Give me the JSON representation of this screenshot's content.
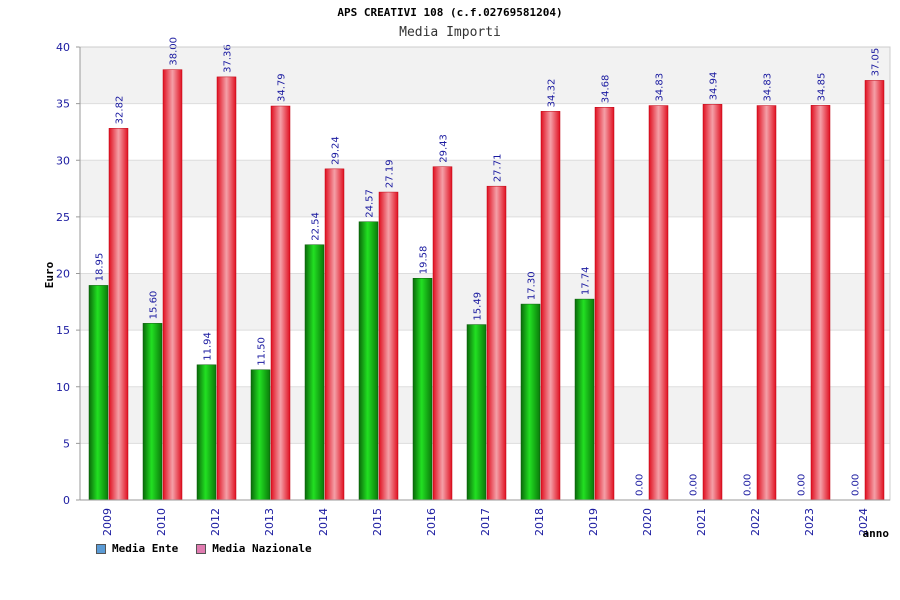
{
  "title": "APS CREATIVI 108 (c.f.02769581204)",
  "subtitle": "Media Importi",
  "chart_data": {
    "type": "bar",
    "categories": [
      "2009",
      "2010",
      "2012",
      "2013",
      "2014",
      "2015",
      "2016",
      "2017",
      "2018",
      "2019",
      "2020",
      "2021",
      "2022",
      "2023",
      "2024"
    ],
    "series": [
      {
        "name": "Media Ente",
        "color": "#00a000",
        "values": [
          18.95,
          15.6,
          11.94,
          11.5,
          22.54,
          24.57,
          19.58,
          15.49,
          17.3,
          17.74,
          0.0,
          0.0,
          0.0,
          0.0,
          0.0
        ]
      },
      {
        "name": "Media Nazionale",
        "color": "#e8202a",
        "values": [
          32.82,
          38.0,
          37.36,
          34.79,
          29.24,
          27.19,
          29.43,
          27.71,
          34.32,
          34.68,
          34.83,
          34.94,
          34.83,
          34.85,
          37.05
        ]
      }
    ],
    "value_labels": [
      [
        "18.95",
        "15.60",
        "11.94",
        "11.50",
        "22.54",
        "24.57",
        "19.58",
        "15.49",
        "17.30",
        "17.74",
        "0.00",
        "0.00",
        "0.00",
        "0.00",
        "0.00"
      ],
      [
        "32.82",
        "38.00",
        "37.36",
        "34.79",
        "29.24",
        "27.19",
        "29.43",
        "27.71",
        "34.32",
        "34.68",
        "34.83",
        "34.94",
        "34.83",
        "34.85",
        "37.05"
      ]
    ],
    "ylabel": "Euro",
    "xlabel": "anno",
    "ylim": [
      0,
      40
    ],
    "yticks": [
      "0",
      "5",
      "10",
      "15",
      "20",
      "25",
      "30",
      "35",
      "40"
    ],
    "grid": true,
    "legend_position": "bottom-left"
  },
  "legend": {
    "items": [
      {
        "label": "Media Ente",
        "color": "#5b9bd5"
      },
      {
        "label": "Media Nazionale",
        "color": "#e07bb0"
      }
    ]
  }
}
